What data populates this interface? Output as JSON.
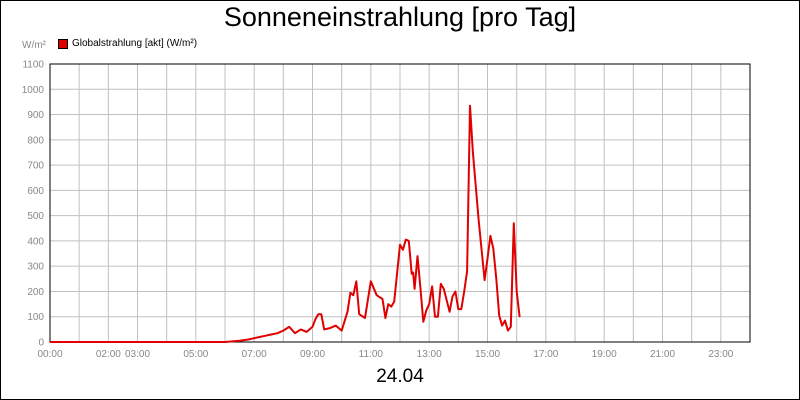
{
  "chart_data": {
    "type": "line",
    "title": "Sonneneinstrahlung [pro Tag]",
    "unit_label": "W/m²",
    "date_label": "24.04",
    "ylim": [
      0,
      1100
    ],
    "xlim": [
      0,
      24
    ],
    "y_ticks": [
      "0",
      "100",
      "200",
      "300",
      "400",
      "500",
      "600",
      "700",
      "800",
      "900",
      "1000",
      "1100"
    ],
    "x_ticks": [
      {
        "t": 0,
        "label": "00:00"
      },
      {
        "t": 2,
        "label": "02:00"
      },
      {
        "t": 3,
        "label": "03:00"
      },
      {
        "t": 5,
        "label": "05:00"
      },
      {
        "t": 7,
        "label": "07:00"
      },
      {
        "t": 9,
        "label": "09:00"
      },
      {
        "t": 11,
        "label": "11:00"
      },
      {
        "t": 13,
        "label": "13:00"
      },
      {
        "t": 15,
        "label": "15:00"
      },
      {
        "t": 17,
        "label": "17:00"
      },
      {
        "t": 19,
        "label": "19:00"
      },
      {
        "t": 21,
        "label": "21:00"
      },
      {
        "t": 23,
        "label": "23:00"
      }
    ],
    "grid": true,
    "legend_position": "top-left",
    "series": [
      {
        "name": "Globalstrahlung [akt] (W/m²)",
        "color": "#e00000",
        "x": [
          0,
          6.0,
          6.5,
          6.8,
          7.0,
          7.2,
          7.4,
          7.6,
          7.8,
          8.0,
          8.2,
          8.4,
          8.6,
          8.8,
          9.0,
          9.1,
          9.2,
          9.3,
          9.4,
          9.6,
          9.8,
          10.0,
          10.2,
          10.3,
          10.4,
          10.5,
          10.6,
          10.8,
          11.0,
          11.2,
          11.4,
          11.5,
          11.6,
          11.7,
          11.8,
          12.0,
          12.1,
          12.2,
          12.3,
          12.4,
          12.45,
          12.5,
          12.6,
          12.7,
          12.8,
          12.9,
          13.0,
          13.1,
          13.2,
          13.3,
          13.4,
          13.5,
          13.7,
          13.8,
          13.9,
          14.0,
          14.1,
          14.2,
          14.3,
          14.4,
          14.5,
          14.7,
          14.9,
          15.0,
          15.1,
          15.2,
          15.3,
          15.4,
          15.5,
          15.6,
          15.7,
          15.8,
          15.9,
          16.0,
          16.1
        ],
        "y": [
          0,
          0,
          5,
          10,
          15,
          20,
          25,
          30,
          35,
          45,
          60,
          35,
          50,
          40,
          60,
          90,
          110,
          110,
          50,
          55,
          65,
          45,
          120,
          195,
          185,
          240,
          110,
          95,
          240,
          185,
          170,
          95,
          150,
          140,
          160,
          385,
          365,
          405,
          400,
          270,
          275,
          210,
          340,
          215,
          80,
          125,
          150,
          220,
          100,
          100,
          230,
          210,
          120,
          180,
          200,
          130,
          130,
          200,
          280,
          935,
          750,
          480,
          245,
          330,
          420,
          370,
          250,
          105,
          65,
          85,
          45,
          60,
          470,
          200,
          100
        ]
      }
    ]
  }
}
